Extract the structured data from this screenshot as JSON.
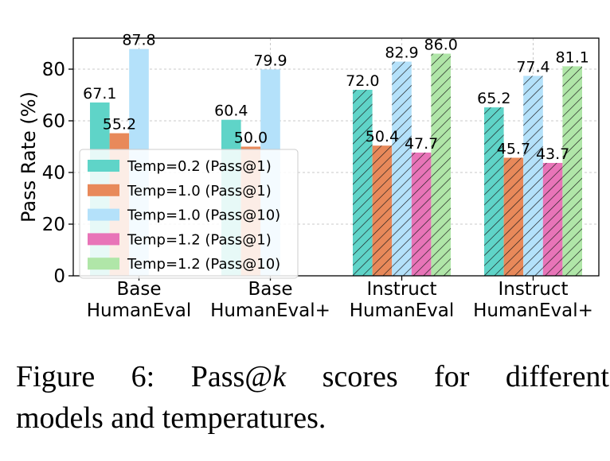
{
  "chart_data": {
    "type": "bar",
    "ylabel": "Pass Rate (%)",
    "xlabel": "",
    "ylim": [
      0,
      92
    ],
    "yticks": [
      0,
      20,
      40,
      60,
      80
    ],
    "grid": true,
    "legend_position": "lower-left",
    "categories": [
      {
        "line1": "Base",
        "line2": "HumanEval"
      },
      {
        "line1": "Base",
        "line2": "HumanEval+"
      },
      {
        "line1": "Instruct",
        "line2": "HumanEval"
      },
      {
        "line1": "Instruct",
        "line2": "HumanEval+"
      }
    ],
    "series": [
      {
        "name": "Temp=0.2 (Pass@1)",
        "color": "#5fd4c8",
        "values": [
          67.1,
          60.4,
          72.0,
          65.2
        ]
      },
      {
        "name": "Temp=1.0 (Pass@1)",
        "color": "#e8895a",
        "values": [
          55.2,
          50.0,
          50.4,
          45.7
        ]
      },
      {
        "name": "Temp=1.0 (Pass@10)",
        "color": "#b4e1fa",
        "values": [
          87.8,
          79.9,
          82.9,
          77.4
        ]
      },
      {
        "name": "Temp=1.2 (Pass@1)",
        "color": "#e874b8",
        "values": [
          null,
          null,
          47.7,
          43.7
        ]
      },
      {
        "name": "Temp=1.2 (Pass@10)",
        "color": "#b0e6a8",
        "values": [
          null,
          null,
          86.0,
          81.1
        ]
      }
    ],
    "hatched_categories": [
      2,
      3
    ]
  },
  "caption": {
    "prefix": "Figure 6:  Pass@",
    "k": "k",
    "suffix": " scores for different",
    "line2": "models and temperatures."
  }
}
